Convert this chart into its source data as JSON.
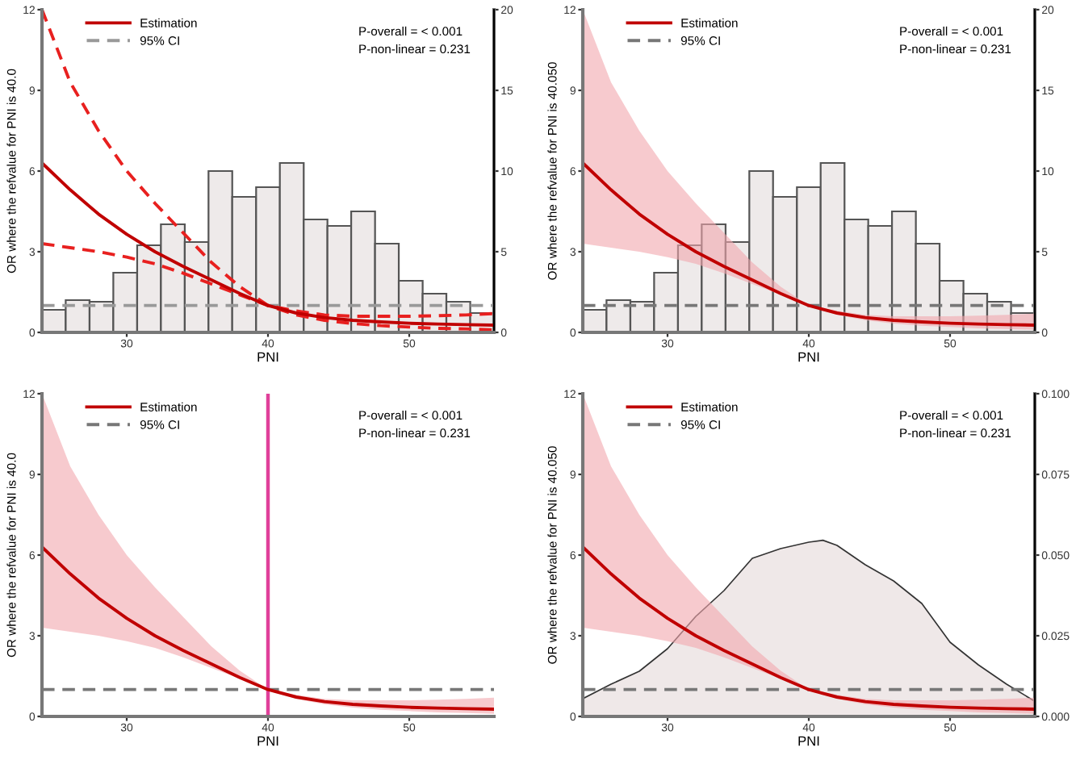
{
  "chart_data": [
    {
      "type": "line",
      "xlabel": "PNI",
      "ylabel": "OR where the refvalue for PNI is 40.0",
      "xlim": [
        24,
        56
      ],
      "xticks": [
        30,
        40,
        50
      ],
      "ylim": [
        0,
        12
      ],
      "yticks": [
        0,
        3,
        6,
        9,
        12
      ],
      "y2lim": [
        0,
        20
      ],
      "y2ticks": [
        0,
        5,
        10,
        15,
        20
      ],
      "legend": "top left",
      "annotations": [
        "P-overall = < 0.001",
        "P-non-linear = 0.231"
      ],
      "x": [
        24,
        26,
        28,
        30,
        32,
        34,
        36,
        38,
        40,
        42,
        44,
        46,
        48,
        50,
        52,
        54,
        56
      ],
      "series": [
        {
          "type": "histogram",
          "axis": "y2",
          "color": "#eeeaea",
          "bins": [
            24,
            25.68,
            27.37,
            29.05,
            30.74,
            32.42,
            34.11,
            35.79,
            37.47,
            39.16,
            40.84,
            42.53,
            44.21,
            45.89,
            47.58,
            49.26,
            50.95,
            52.63,
            54.32,
            56
          ],
          "values": [
            1.4,
            2.0,
            1.9,
            3.7,
            5.4,
            6.7,
            5.6,
            10.0,
            8.4,
            9.0,
            10.5,
            7.0,
            6.6,
            7.5,
            5.5,
            3.2,
            2.4,
            1.9,
            1.2
          ]
        },
        {
          "color": "#e8201f",
          "line_style": "dashed",
          "values": [
            12.0,
            9.3,
            7.5,
            6.0,
            4.8,
            3.7,
            2.6,
            1.7,
            1.0,
            0.8,
            0.65,
            0.6,
            0.6,
            0.6,
            0.62,
            0.65,
            0.7
          ]
        },
        {
          "color": "#e8201f",
          "line_style": "dashed",
          "values": [
            3.3,
            3.15,
            3.0,
            2.8,
            2.55,
            2.2,
            1.8,
            1.4,
            1.0,
            0.65,
            0.45,
            0.33,
            0.25,
            0.2,
            0.15,
            0.13,
            0.1
          ]
        },
        {
          "name": "Estimation",
          "color": "#c00000",
          "line_style": "solid",
          "values": [
            6.3,
            5.3,
            4.4,
            3.65,
            3.0,
            2.45,
            1.95,
            1.45,
            1.0,
            0.72,
            0.55,
            0.45,
            0.39,
            0.34,
            0.31,
            0.29,
            0.27
          ]
        }
      ],
      "ref_lines": [
        {
          "axis": "y",
          "value": 1,
          "label": "95% CI",
          "color": "#999999",
          "line_style": "dashed"
        }
      ]
    },
    {
      "type": "line",
      "xlabel": "PNI",
      "ylabel": "OR where the refvalue for PNI is 40.050",
      "xlim": [
        24,
        56
      ],
      "xticks": [
        30,
        40,
        50
      ],
      "ylim": [
        0,
        12
      ],
      "yticks": [
        0,
        3,
        6,
        9,
        12
      ],
      "y2lim": [
        0,
        20
      ],
      "y2ticks": [
        0,
        5,
        10,
        15,
        20
      ],
      "legend": "top left",
      "annotations": [
        "P-overall = < 0.001",
        "P-non-linear = 0.231"
      ],
      "x": [
        24,
        26,
        28,
        30,
        32,
        34,
        36,
        38,
        40,
        42,
        44,
        46,
        48,
        50,
        52,
        54,
        56
      ],
      "series": [
        {
          "type": "histogram",
          "axis": "y2",
          "color": "#eeeaea",
          "bins": [
            24,
            25.68,
            27.37,
            29.05,
            30.74,
            32.42,
            34.11,
            35.79,
            37.47,
            39.16,
            40.84,
            42.53,
            44.21,
            45.89,
            47.58,
            49.26,
            50.95,
            52.63,
            54.32,
            56
          ],
          "values": [
            1.4,
            2.0,
            1.9,
            3.7,
            5.4,
            6.7,
            5.6,
            10.0,
            8.4,
            9.0,
            10.5,
            7.0,
            6.6,
            7.5,
            5.5,
            3.2,
            2.4,
            1.9,
            1.2
          ]
        },
        {
          "name": "Estimation",
          "color": "#c00000",
          "line_style": "solid",
          "values": [
            6.3,
            5.3,
            4.4,
            3.65,
            3.0,
            2.45,
            1.95,
            1.45,
            1.0,
            0.72,
            0.55,
            0.45,
            0.39,
            0.34,
            0.31,
            0.29,
            0.27
          ],
          "lower": [
            3.3,
            3.15,
            3.0,
            2.8,
            2.55,
            2.2,
            1.8,
            1.4,
            1.0,
            0.65,
            0.45,
            0.33,
            0.25,
            0.2,
            0.15,
            0.13,
            0.1
          ],
          "upper": [
            12.0,
            9.3,
            7.5,
            6.0,
            4.8,
            3.7,
            2.6,
            1.7,
            1.0,
            0.8,
            0.65,
            0.6,
            0.6,
            0.6,
            0.62,
            0.65,
            0.7
          ]
        }
      ],
      "ref_lines": [
        {
          "axis": "y",
          "value": 1,
          "label": "95% CI",
          "color": "#777777",
          "line_style": "dashed"
        }
      ]
    },
    {
      "type": "line",
      "xlabel": "PNI",
      "ylabel": "OR where the refvalue for PNI is 40.0",
      "xlim": [
        24,
        56
      ],
      "xticks": [
        30,
        40,
        50
      ],
      "ylim": [
        0,
        12
      ],
      "yticks": [
        0,
        3,
        6,
        9,
        12
      ],
      "legend": "top left",
      "annotations": [
        "P-overall = < 0.001",
        "P-non-linear = 0.231"
      ],
      "x": [
        24,
        26,
        28,
        30,
        32,
        34,
        36,
        38,
        40,
        42,
        44,
        46,
        48,
        50,
        52,
        54,
        56
      ],
      "series": [
        {
          "name": "Estimation",
          "color": "#c00000",
          "line_style": "solid",
          "values": [
            6.3,
            5.3,
            4.4,
            3.65,
            3.0,
            2.45,
            1.95,
            1.45,
            1.0,
            0.72,
            0.55,
            0.45,
            0.39,
            0.34,
            0.31,
            0.29,
            0.27
          ],
          "lower": [
            3.3,
            3.15,
            3.0,
            2.8,
            2.55,
            2.2,
            1.8,
            1.4,
            1.0,
            0.65,
            0.45,
            0.33,
            0.25,
            0.2,
            0.15,
            0.13,
            0.1
          ],
          "upper": [
            12.0,
            9.3,
            7.5,
            6.0,
            4.8,
            3.7,
            2.6,
            1.7,
            1.0,
            0.8,
            0.65,
            0.6,
            0.6,
            0.6,
            0.62,
            0.65,
            0.7
          ]
        }
      ],
      "ref_lines": [
        {
          "axis": "y",
          "value": 1,
          "label": "95% CI",
          "color": "#777777",
          "line_style": "dashed"
        },
        {
          "axis": "x",
          "value": 40,
          "color": "#e0409a",
          "line_style": "solid"
        }
      ]
    },
    {
      "type": "line",
      "xlabel": "PNI",
      "ylabel": "OR where the refvalue for PNI is 40.050",
      "xlim": [
        24,
        56
      ],
      "xticks": [
        30,
        40,
        50
      ],
      "ylim": [
        0,
        12
      ],
      "yticks": [
        0,
        3,
        6,
        9,
        12
      ],
      "y2lim": [
        0,
        0.1
      ],
      "y2ticks": [
        {
          "value": 0,
          "label": "0.000"
        },
        {
          "value": 0.025,
          "label": "0.025"
        },
        {
          "value": 0.05,
          "label": "0.050"
        },
        {
          "value": 0.075,
          "label": "0.075"
        },
        {
          "value": 0.1,
          "label": "0.100"
        }
      ],
      "legend": "top left",
      "annotations": [
        "P-overall = < 0.001",
        "P-non-linear = 0.231"
      ],
      "x": [
        24,
        26,
        28,
        30,
        32,
        34,
        36,
        38,
        40,
        42,
        44,
        46,
        48,
        50,
        52,
        54,
        56
      ],
      "series": [
        {
          "type": "area",
          "axis": "y2",
          "color": "#efe8e8",
          "x": [
            24,
            26,
            28,
            30,
            32,
            34,
            36,
            38,
            40,
            41,
            42,
            44,
            46,
            48,
            50,
            52,
            54,
            56
          ],
          "values": [
            0.0055,
            0.01,
            0.014,
            0.021,
            0.031,
            0.039,
            0.049,
            0.052,
            0.054,
            0.0546,
            0.053,
            0.047,
            0.042,
            0.035,
            0.023,
            0.016,
            0.01,
            0.0047
          ]
        },
        {
          "name": "Estimation",
          "color": "#c00000",
          "line_style": "solid",
          "values": [
            6.3,
            5.3,
            4.4,
            3.65,
            3.0,
            2.45,
            1.95,
            1.45,
            1.0,
            0.72,
            0.55,
            0.45,
            0.39,
            0.34,
            0.31,
            0.29,
            0.27
          ],
          "lower": [
            3.3,
            3.15,
            3.0,
            2.8,
            2.55,
            2.2,
            1.8,
            1.4,
            1.0,
            0.65,
            0.45,
            0.33,
            0.25,
            0.2,
            0.15,
            0.13,
            0.1
          ],
          "upper": [
            12.0,
            9.3,
            7.5,
            6.0,
            4.8,
            3.7,
            2.6,
            1.7,
            1.0,
            0.8,
            0.65,
            0.6,
            0.6,
            0.6,
            0.62,
            0.65,
            0.7
          ]
        }
      ],
      "ref_lines": [
        {
          "axis": "y",
          "value": 1,
          "label": "95% CI",
          "color": "#777777",
          "line_style": "dashed"
        }
      ]
    }
  ]
}
